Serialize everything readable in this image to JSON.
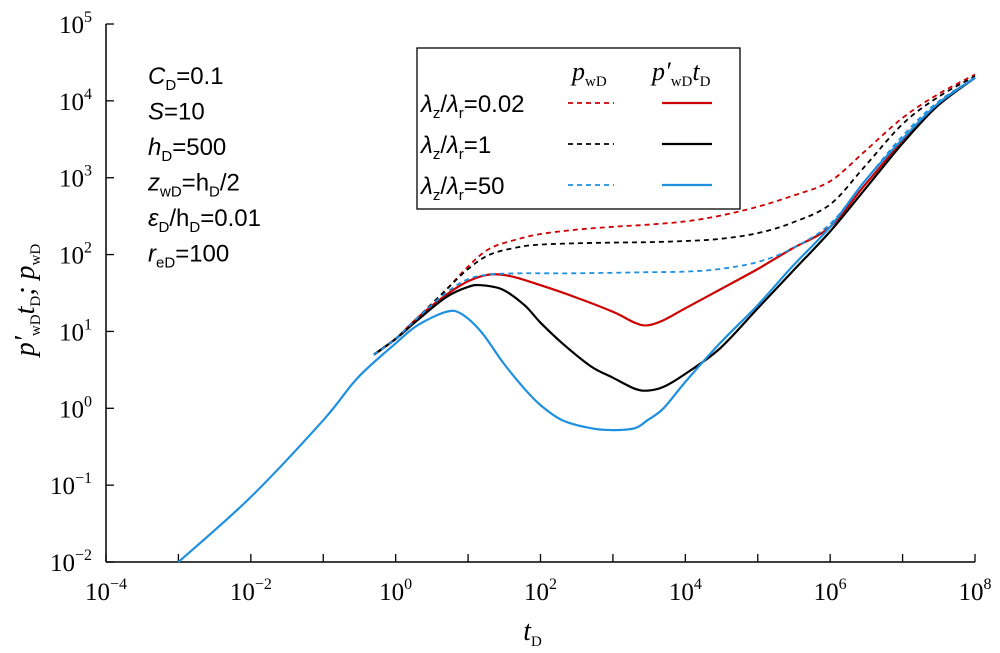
{
  "chart_data": {
    "type": "line",
    "x_scale": "log",
    "y_scale": "log",
    "xlim": [
      0.0001,
      100000000
    ],
    "ylim": [
      0.01,
      100000
    ],
    "x_ticks": [
      {
        "base": "10",
        "exp": "−4"
      },
      {
        "base": "10",
        "exp": "−2"
      },
      {
        "base": "10",
        "exp": "0"
      },
      {
        "base": "10",
        "exp": "2"
      },
      {
        "base": "10",
        "exp": "4"
      },
      {
        "base": "10",
        "exp": "6"
      },
      {
        "base": "10",
        "exp": "8"
      }
    ],
    "y_ticks": [
      {
        "base": "10",
        "exp": "−2"
      },
      {
        "base": "10",
        "exp": "−1"
      },
      {
        "base": "10",
        "exp": "0"
      },
      {
        "base": "10",
        "exp": "1"
      },
      {
        "base": "10",
        "exp": "2"
      },
      {
        "base": "10",
        "exp": "3"
      },
      {
        "base": "10",
        "exp": "4"
      },
      {
        "base": "10",
        "exp": "5"
      }
    ],
    "xlabel": {
      "main": "t",
      "sub": "D"
    },
    "ylabel": {
      "p1": "p′",
      "s1": "wD",
      "p2": "t",
      "s2": "D",
      "p3": "; p",
      "s3": "wD"
    },
    "parameters": [
      {
        "sym": "C",
        "sub": "D",
        "rest": "=0.1"
      },
      {
        "sym": "S",
        "sub": "",
        "rest": "=10"
      },
      {
        "sym": "h",
        "sub": "D",
        "rest": "=500"
      },
      {
        "sym": "z",
        "sub": "wD",
        "rest": "=h",
        "sym2sub": "D",
        "tail": "/2"
      },
      {
        "sym": "ε",
        "sub": "D",
        "rest": "/h",
        "sym2sub": "D",
        "tail": "=0.01"
      },
      {
        "sym": "r",
        "sub": "eD",
        "rest": "=100"
      }
    ],
    "legend": {
      "position": "top-center",
      "col1": {
        "sym": "p",
        "sub": "wD"
      },
      "col2": {
        "sym": "p′",
        "sub": "wD",
        "sym2": "t",
        "sub2": "D"
      },
      "rows": [
        {
          "ratio": "=0.02",
          "color": "#cc0000"
        },
        {
          "ratio": "=1",
          "color": "#000000"
        },
        {
          "ratio": "=50",
          "color": "#1e90e0"
        }
      ]
    },
    "series": [
      {
        "name": "λz/λr=0.02 pwD",
        "color": "#cc0000",
        "dash": true,
        "points": [
          [
            0.5,
            5
          ],
          [
            1,
            8
          ],
          [
            2,
            15
          ],
          [
            5,
            35
          ],
          [
            10,
            70
          ],
          [
            20,
            120
          ],
          [
            50,
            160
          ],
          [
            100,
            185
          ],
          [
            300,
            210
          ],
          [
            1000,
            230
          ],
          [
            3000,
            245
          ],
          [
            10000,
            270
          ],
          [
            30000,
            320
          ],
          [
            100000,
            420
          ],
          [
            300000,
            580
          ],
          [
            1000000,
            900
          ],
          [
            3000000,
            2200
          ],
          [
            10000000,
            6000
          ],
          [
            30000000,
            12000
          ],
          [
            100000000,
            22000
          ]
        ]
      },
      {
        "name": "λz/λr=0.02 p'wDtD",
        "color": "#cc0000",
        "dash": false,
        "points": [
          [
            0.5,
            5
          ],
          [
            1,
            8
          ],
          [
            2,
            15
          ],
          [
            5,
            30
          ],
          [
            10,
            45
          ],
          [
            20,
            55
          ],
          [
            40,
            52
          ],
          [
            100,
            40
          ],
          [
            300,
            28
          ],
          [
            1000,
            18
          ],
          [
            2000,
            13
          ],
          [
            3000,
            12
          ],
          [
            5000,
            14
          ],
          [
            10000,
            20
          ],
          [
            30000,
            35
          ],
          [
            100000,
            65
          ],
          [
            300000,
            120
          ],
          [
            1000000,
            230
          ],
          [
            3000000,
            800
          ],
          [
            10000000,
            3000
          ],
          [
            30000000,
            9000
          ],
          [
            100000000,
            20000
          ]
        ]
      },
      {
        "name": "λz/λr=1 pwD",
        "color": "#000000",
        "dash": true,
        "points": [
          [
            0.5,
            5
          ],
          [
            1,
            8
          ],
          [
            2,
            15
          ],
          [
            5,
            35
          ],
          [
            10,
            65
          ],
          [
            20,
            100
          ],
          [
            50,
            125
          ],
          [
            100,
            135
          ],
          [
            300,
            140
          ],
          [
            1000,
            143
          ],
          [
            3000,
            145
          ],
          [
            10000,
            150
          ],
          [
            30000,
            160
          ],
          [
            100000,
            190
          ],
          [
            300000,
            260
          ],
          [
            1000000,
            450
          ],
          [
            3000000,
            1400
          ],
          [
            10000000,
            5000
          ],
          [
            30000000,
            11000
          ],
          [
            100000000,
            21000
          ]
        ]
      },
      {
        "name": "λz/λr=1 p'wDtD",
        "color": "#000000",
        "dash": false,
        "points": [
          [
            0.5,
            5
          ],
          [
            1,
            8
          ],
          [
            2,
            14
          ],
          [
            5,
            28
          ],
          [
            10,
            38
          ],
          [
            15,
            40
          ],
          [
            30,
            35
          ],
          [
            60,
            22
          ],
          [
            100,
            13
          ],
          [
            200,
            7
          ],
          [
            500,
            3.5
          ],
          [
            1000,
            2.5
          ],
          [
            2000,
            1.8
          ],
          [
            3000,
            1.7
          ],
          [
            5000,
            1.9
          ],
          [
            10000,
            2.8
          ],
          [
            30000,
            6
          ],
          [
            100000,
            20
          ],
          [
            300000,
            60
          ],
          [
            1000000,
            200
          ],
          [
            3000000,
            700
          ],
          [
            10000000,
            2800
          ],
          [
            30000000,
            8500
          ],
          [
            100000000,
            20000
          ]
        ]
      },
      {
        "name": "λz/λr=50 pwD",
        "color": "#1e90e0",
        "dash": true,
        "points": [
          [
            0.5,
            5
          ],
          [
            1,
            8
          ],
          [
            2,
            15
          ],
          [
            5,
            32
          ],
          [
            10,
            48
          ],
          [
            20,
            55
          ],
          [
            50,
            57
          ],
          [
            100,
            57
          ],
          [
            300,
            57
          ],
          [
            1000,
            58
          ],
          [
            3000,
            59
          ],
          [
            10000,
            60
          ],
          [
            30000,
            65
          ],
          [
            100000,
            80
          ],
          [
            300000,
            120
          ],
          [
            1000000,
            250
          ],
          [
            3000000,
            900
          ],
          [
            10000000,
            3500
          ],
          [
            30000000,
            9500
          ],
          [
            100000000,
            20000
          ]
        ]
      },
      {
        "name": "λz/λr=50 p'wDtD",
        "color": "#1e90e0",
        "dash": false,
        "points": [
          [
            0.001,
            0.01
          ],
          [
            0.01,
            0.07
          ],
          [
            0.1,
            0.7
          ],
          [
            0.3,
            2.5
          ],
          [
            1,
            7
          ],
          [
            2,
            12
          ],
          [
            5,
            18
          ],
          [
            8,
            17
          ],
          [
            15,
            10
          ],
          [
            30,
            4
          ],
          [
            60,
            1.8
          ],
          [
            100,
            1.1
          ],
          [
            200,
            0.7
          ],
          [
            500,
            0.55
          ],
          [
            1000,
            0.52
          ],
          [
            2000,
            0.55
          ],
          [
            3000,
            0.7
          ],
          [
            5000,
            1.0
          ],
          [
            10000,
            2.2
          ],
          [
            30000,
            7
          ],
          [
            100000,
            22
          ],
          [
            300000,
            70
          ],
          [
            1000000,
            230
          ],
          [
            3000000,
            900
          ],
          [
            10000000,
            3200
          ],
          [
            30000000,
            9000
          ],
          [
            100000000,
            20000
          ]
        ]
      }
    ]
  }
}
